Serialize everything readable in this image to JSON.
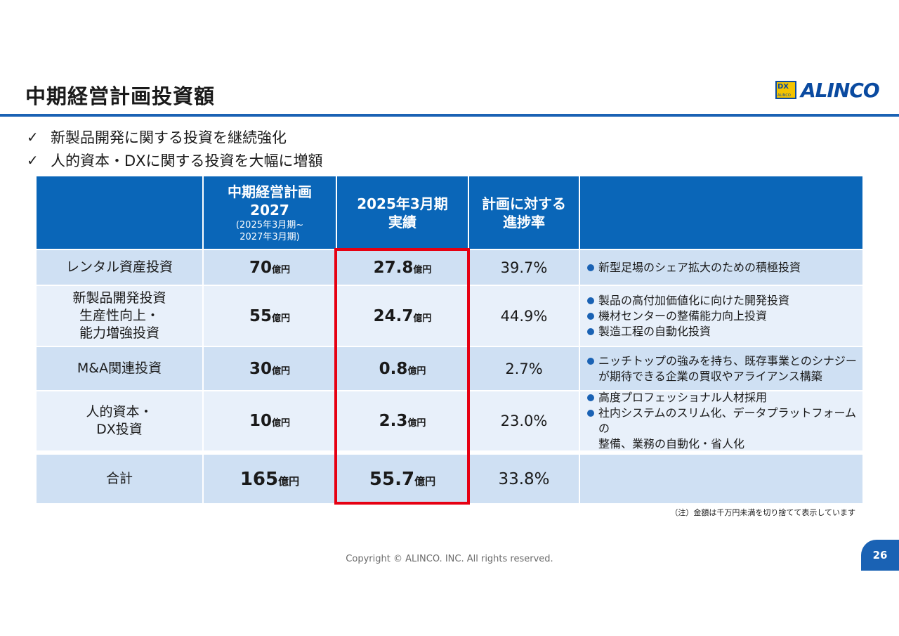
{
  "title": "中期経営計画投資額",
  "logo": {
    "mark": "DX",
    "mark_small": "ALINCO",
    "text": "ALINCO",
    "colors": {
      "brand": "#0a4aa0",
      "mark_bg": "#f4c300"
    }
  },
  "bullets": [
    {
      "check": "✓",
      "text": "新製品開発に関する投資を継続強化"
    },
    {
      "check": "✓",
      "text": "人的資本・DXに関する投資を大幅に増額"
    }
  ],
  "table": {
    "headers": {
      "col1": "",
      "col2_main": "中期経営計画\n2027",
      "col2_sub": "(2025年3月期~\n2027年3月期)",
      "col3": "2025年3月期\n実績",
      "col4": "計画に対する\n進捗率",
      "col5": ""
    },
    "rows": [
      {
        "label": "レンタル資産投資",
        "plan": "70",
        "plan_unit": "億円",
        "actual": "27.8",
        "actual_unit": "億円",
        "progress": "39.7%",
        "notes": [
          "新型足場のシェア拡大のための積極投資"
        ]
      },
      {
        "label": "新製品開発投資\n生産性向上・\n能力増強投資",
        "plan": "55",
        "plan_unit": "億円",
        "actual": "24.7",
        "actual_unit": "億円",
        "progress": "44.9%",
        "notes": [
          "製品の高付加価値化に向けた開発投資",
          "機材センターの整備能力向上投資",
          "製造工程の自動化投資"
        ]
      },
      {
        "label": "M&A関連投資",
        "plan": "30",
        "plan_unit": "億円",
        "actual": "0.8",
        "actual_unit": "億円",
        "progress": "2.7%",
        "notes": [
          "ニッチトップの強みを持ち、既存事業とのシナジー\nが期待できる企業の買収やアライアンス構築"
        ]
      },
      {
        "label": "人的資本・\nDX投資",
        "plan": "10",
        "plan_unit": "億円",
        "actual": "2.3",
        "actual_unit": "億円",
        "progress": "23.0%",
        "notes": [
          "高度プロフェッショナル人材採用",
          "社内システムのスリム化、データプラットフォームの\n整備、業務の自動化・省人化"
        ]
      }
    ],
    "total": {
      "label": "合計",
      "plan": "165",
      "plan_unit": "億円",
      "actual": "55.7",
      "actual_unit": "億円",
      "progress": "33.8%"
    }
  },
  "footnote": "（注）金額は千万円未満を切り捨てて表示しています",
  "copyright": "Copyright © ALINCO. INC. All rights reserved.",
  "page_number": "26",
  "colors": {
    "header_bg": "#0a66b8",
    "row_dark": "#cfe0f3",
    "row_light": "#e8f0fa",
    "highlight": "#e60012",
    "accent": "#1a62b4"
  }
}
